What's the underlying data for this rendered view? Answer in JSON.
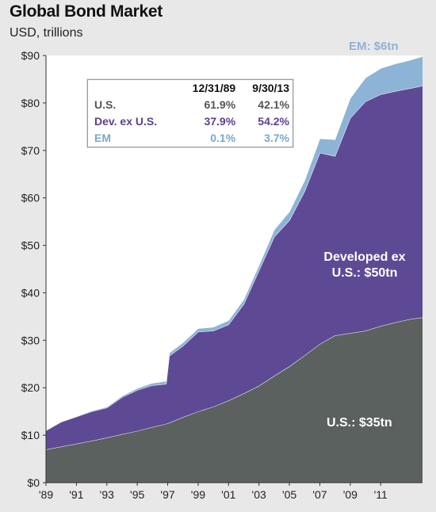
{
  "title": "Global Bond Market",
  "subtitle": "USD, trillions",
  "colors": {
    "us": "#5a615f",
    "developed": "#5e4a94",
    "em": "#8db3d6",
    "background": "#e8e8e8"
  },
  "annotations": {
    "em": "EM: $6tn",
    "dev_line1": "Developed ex",
    "dev_line2": "U.S.: $50tn",
    "us": "U.S.: $35tn"
  },
  "table": {
    "headers": [
      "",
      "12/31/89",
      "9/30/13"
    ],
    "rows": [
      {
        "label": "U.S.",
        "v1": "61.9%",
        "v2": "42.1%"
      },
      {
        "label": "Dev. ex U.S.",
        "v1": "37.9%",
        "v2": "54.2%"
      },
      {
        "label": "EM",
        "v1": "0.1%",
        "v2": "3.7%"
      }
    ]
  },
  "chart_data": {
    "type": "area",
    "stacked": true,
    "xlim": [
      1989,
      2013.75
    ],
    "ylim": [
      0,
      90
    ],
    "y_ticks": [
      "$0",
      "$10",
      "$20",
      "$30",
      "$40",
      "$50",
      "$60",
      "$70",
      "$80",
      "$90"
    ],
    "x_ticks": [
      {
        "year": 1989,
        "label": "'89"
      },
      {
        "year": 1991,
        "label": "'91"
      },
      {
        "year": 1993,
        "label": "'93"
      },
      {
        "year": 1995,
        "label": "'95"
      },
      {
        "year": 1997,
        "label": "'97"
      },
      {
        "year": 1999,
        "label": "'99"
      },
      {
        "year": 2001,
        "label": "'01"
      },
      {
        "year": 2003,
        "label": "'03"
      },
      {
        "year": 2005,
        "label": "'05"
      },
      {
        "year": 2007,
        "label": "'07"
      },
      {
        "year": 2009,
        "label": "'09"
      },
      {
        "year": 2011,
        "label": "'11"
      }
    ],
    "x": [
      1989,
      1990,
      1991,
      1992,
      1993,
      1994,
      1995,
      1996,
      1996.9,
      1997.1,
      1998,
      1999,
      2000,
      2001,
      2002,
      2003,
      2004,
      2005,
      2006,
      2007,
      2008,
      2009,
      2010,
      2011,
      2012,
      2013,
      2013.75
    ],
    "series": [
      {
        "name": "U.S.",
        "values": [
          7.0,
          7.6,
          8.2,
          8.8,
          9.5,
          10.2,
          10.9,
          11.7,
          12.4,
          12.6,
          13.8,
          15.0,
          16.0,
          17.3,
          18.8,
          20.4,
          22.5,
          24.5,
          26.8,
          29.2,
          31.0,
          31.5,
          32.0,
          33.0,
          33.8,
          34.5,
          34.8
        ]
      },
      {
        "name": "Dev. ex U.S.",
        "values": [
          4.0,
          5.2,
          5.7,
          6.2,
          6.3,
          7.8,
          8.6,
          8.8,
          8.4,
          14.1,
          15.0,
          16.8,
          16.0,
          16.0,
          18.8,
          24.3,
          29.3,
          30.8,
          34.6,
          40.3,
          37.8,
          45.3,
          48.3,
          48.8,
          48.7,
          48.6,
          48.8
        ]
      },
      {
        "name": "EM",
        "values": [
          0.01,
          0.05,
          0.1,
          0.15,
          0.2,
          0.3,
          0.4,
          0.5,
          0.6,
          0.65,
          0.7,
          0.7,
          0.8,
          0.9,
          1.0,
          1.1,
          1.5,
          1.8,
          2.3,
          3.0,
          3.5,
          4.2,
          5.0,
          5.5,
          5.8,
          6.0,
          6.2
        ]
      }
    ]
  }
}
